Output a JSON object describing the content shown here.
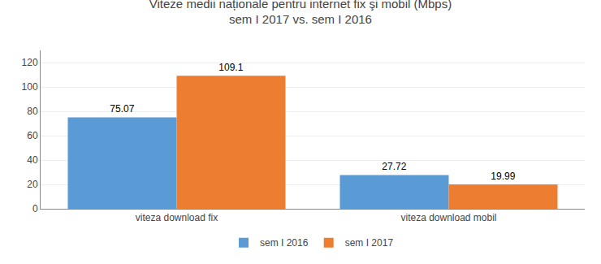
{
  "chart_data": {
    "type": "bar",
    "title": "Viteze medii naționale pentru internet fix şi mobil (Mbps)",
    "subtitle": "sem I 2017 vs. sem I 2016",
    "categories": [
      "viteza download fix",
      "viteza download mobil"
    ],
    "series": [
      {
        "name": "sem I 2016",
        "color": "#5b9bd5",
        "values": [
          75.07,
          27.72
        ]
      },
      {
        "name": "sem I 2017",
        "color": "#ed7d31",
        "values": [
          109.1,
          19.99
        ]
      }
    ],
    "ylim": [
      0,
      130
    ],
    "yticks": [
      0,
      20,
      40,
      60,
      80,
      100,
      120
    ],
    "grid": true,
    "legend": "bottom",
    "data_labels": true
  }
}
